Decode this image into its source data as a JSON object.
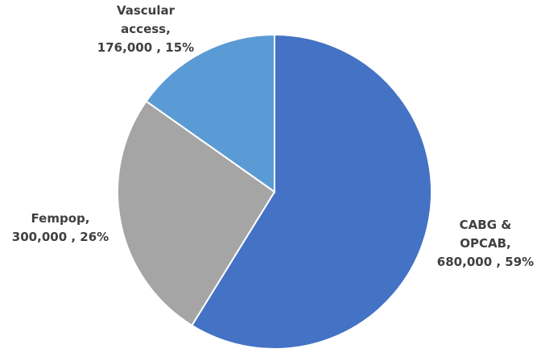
{
  "chart_data": {
    "type": "pie",
    "categories": [
      "CABG & OPCAB",
      "Fempop",
      "Vascular access"
    ],
    "values": [
      680000,
      300000,
      176000
    ],
    "value_labels": [
      "680,000",
      "300,000",
      "176,000"
    ],
    "percents": [
      59,
      26,
      15
    ],
    "percent_labels": [
      "59%",
      "26%",
      "15%"
    ],
    "name_separator": ",",
    "label_separator": " , ",
    "colors": [
      "#4472c4",
      "#a5a5a5",
      "#5b9bd5"
    ]
  }
}
